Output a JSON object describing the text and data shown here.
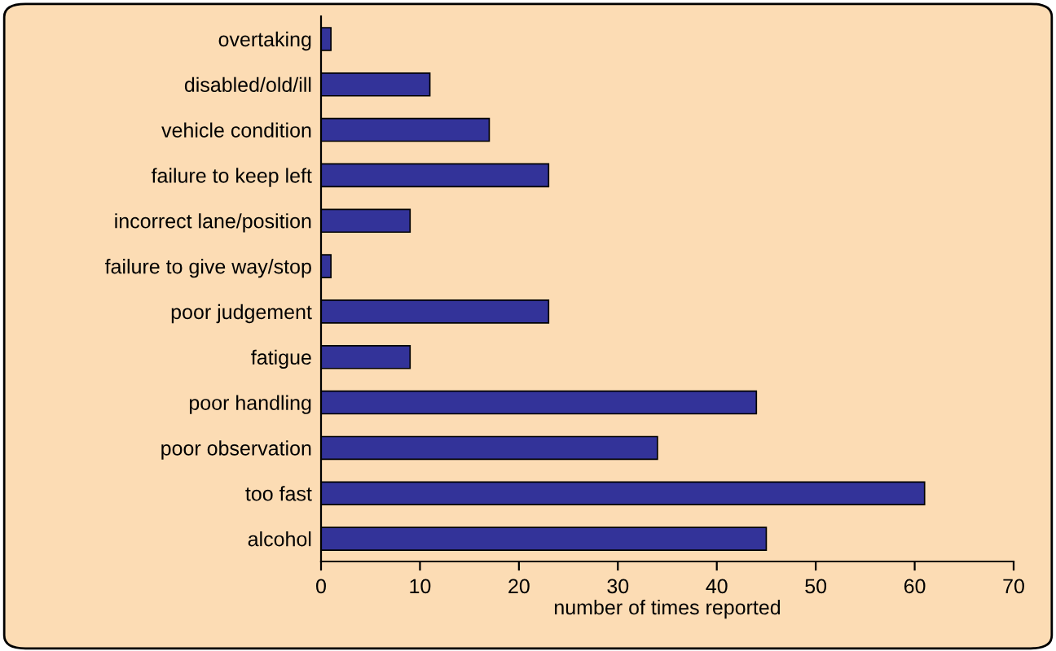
{
  "chart_data": {
    "type": "bar",
    "orientation": "horizontal",
    "xlabel": "number of times reported",
    "categories": [
      "overtaking",
      "disabled/old/ill",
      "vehicle condition",
      "failure to keep left",
      "incorrect lane/position",
      "failure to give way/stop",
      "poor judgement",
      "fatigue",
      "poor handling",
      "poor observation",
      "too fast",
      "alcohol"
    ],
    "values": [
      1,
      11,
      17,
      23,
      9,
      1,
      23,
      9,
      44,
      34,
      61,
      45
    ],
    "color": "#333399",
    "xlim": [
      0,
      70
    ],
    "xticks": [
      0,
      10,
      20,
      30,
      40,
      50,
      60,
      70
    ],
    "grid": false,
    "legend": false
  }
}
